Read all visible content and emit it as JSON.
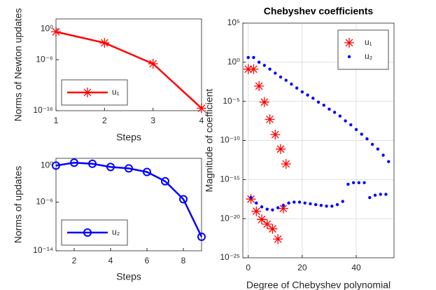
{
  "chart_data": [
    {
      "type": "line",
      "xlabel": "Steps",
      "ylabel": "Norms of Newton updates",
      "yscale": "log",
      "xlim": [
        1,
        4
      ],
      "xticks": [
        1,
        2,
        3,
        4
      ],
      "ylim": [
        1e-16,
        100
      ],
      "yticks": [
        {
          "value": 1e-16,
          "label": "10⁻¹⁶"
        },
        {
          "value": 1e-06,
          "label": "10⁻⁶"
        },
        {
          "value": 1,
          "label": "10⁰"
        }
      ],
      "grid": false,
      "legend": "lower left",
      "series": [
        {
          "name": "u₁",
          "color": "#ff0000",
          "marker": "asterisk",
          "x": [
            1,
            2,
            3,
            4
          ],
          "values": [
            0.3,
            0.002,
            1.6e-07,
            3e-16
          ]
        }
      ]
    },
    {
      "type": "line",
      "xlabel": "Steps",
      "ylabel": "Norms of updates",
      "yscale": "log",
      "xlim": [
        1,
        9
      ],
      "xticks": [
        2,
        4,
        6,
        8
      ],
      "ylim": [
        1e-14,
        15.8
      ],
      "yticks": [
        {
          "value": 1e-14,
          "label": "10⁻¹⁴"
        },
        {
          "value": 1e-06,
          "label": "10⁻⁶"
        },
        {
          "value": 1,
          "label": "10⁰"
        }
      ],
      "grid": false,
      "legend": "lower left",
      "series": [
        {
          "name": "u₂",
          "color": "#0000ff",
          "marker": "circle",
          "x": [
            1,
            2,
            3,
            4,
            5,
            6,
            7,
            8,
            9
          ],
          "values": [
            1,
            3,
            2,
            0.6,
            0.35,
            0.09,
            0.0027,
            3e-06,
            2e-12
          ]
        }
      ]
    },
    {
      "type": "scatter",
      "title": "Chebyshev coefficients",
      "xlabel": "Degree of Chebyshev polynomial",
      "ylabel": "Magnitude of coefficient",
      "yscale": "log",
      "xlim": [
        -2,
        54
      ],
      "xticks": [
        0,
        20,
        40
      ],
      "ylim": [
        1e-25,
        100000.0
      ],
      "yticks": [
        {
          "value": 1e-25,
          "label": "10⁻²⁵"
        },
        {
          "value": 1e-20,
          "label": "10⁻²⁰"
        },
        {
          "value": 1e-15,
          "label": "10⁻¹⁵"
        },
        {
          "value": 1e-10,
          "label": "10⁻¹⁰"
        },
        {
          "value": 1e-05,
          "label": "10⁻⁵"
        },
        {
          "value": 1,
          "label": "10⁰"
        },
        {
          "value": 100000.0,
          "label": "10⁵"
        }
      ],
      "grid": true,
      "legend": "upper right",
      "series": [
        {
          "name": "u₁",
          "color": "#ff0000",
          "marker": "asterisk",
          "x": [
            0,
            2,
            4,
            6,
            8,
            10,
            12,
            14,
            1,
            3,
            5,
            7,
            9,
            11,
            13
          ],
          "values": [
            0.13,
            0.13,
            0.00089,
            7.9e-06,
            5e-08,
            5.6e-10,
            7.9e-12,
            1e-13,
            3.2e-18,
            8.9e-20,
            7.9e-21,
            2e-21,
            5e-22,
            2.5e-23,
            2e-19
          ]
        },
        {
          "name": "u₂",
          "color": "#0000ff",
          "marker": "dot",
          "x": [
            0,
            2,
            4,
            6,
            8,
            10,
            12,
            14,
            16,
            18,
            20,
            22,
            24,
            26,
            28,
            30,
            32,
            34,
            36,
            38,
            40,
            42,
            44,
            46,
            48,
            50,
            52,
            1,
            3,
            5,
            7,
            9,
            11,
            13,
            15,
            17,
            19,
            21,
            23,
            25,
            27,
            29,
            31,
            33,
            35,
            37,
            39,
            41,
            43,
            45,
            47,
            49,
            51
          ],
          "values": [
            4,
            4,
            1,
            0.4,
            0.13,
            0.04,
            0.013,
            0.005,
            0.0016,
            0.0005,
            0.00016,
            6.3e-05,
            2.5e-05,
            7.9e-06,
            3.2e-06,
            1e-06,
            4e-07,
            1.3e-07,
            3.2e-08,
            1e-08,
            2.5e-09,
            6.3e-10,
            1.6e-10,
            3.2e-11,
            7.9e-12,
            1.3e-12,
            2e-13,
            5e-18,
            1e-18,
            3.2e-19,
            1.6e-19,
            1.3e-19,
            2.5e-19,
            5e-19,
            1e-18,
            1.3e-18,
            1.3e-18,
            1e-18,
            7.9e-19,
            6.3e-19,
            5e-19,
            4e-19,
            4e-19,
            6.3e-19,
            1.6e-18,
            2.5e-16,
            4e-16,
            4e-16,
            4e-16,
            5e-18,
            1e-17,
            1.3e-17,
            1.3e-17
          ]
        }
      ]
    }
  ]
}
